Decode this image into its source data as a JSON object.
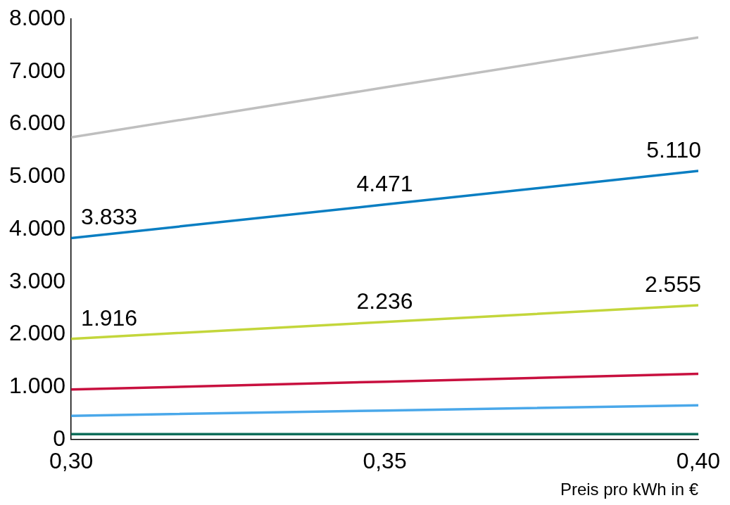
{
  "chart_data": {
    "type": "line",
    "xlabel": "Preis pro kWh in €",
    "x": [
      0.3,
      0.35,
      0.4
    ],
    "xlim": [
      0.3,
      0.4
    ],
    "xticks": [
      {
        "value": 0.3,
        "label": "0,30"
      },
      {
        "value": 0.35,
        "label": "0,35"
      },
      {
        "value": 0.4,
        "label": "0,40"
      }
    ],
    "ylim": [
      0,
      8000
    ],
    "yticks": [
      {
        "value": 0,
        "label": "0"
      },
      {
        "value": 1000,
        "label": "1.000"
      },
      {
        "value": 2000,
        "label": "2.000"
      },
      {
        "value": 3000,
        "label": "3.000"
      },
      {
        "value": 4000,
        "label": "4.000"
      },
      {
        "value": 5000,
        "label": "5.000"
      },
      {
        "value": 6000,
        "label": "6.000"
      },
      {
        "value": 7000,
        "label": "7.000"
      },
      {
        "value": 8000,
        "label": "8.000"
      }
    ],
    "series": [
      {
        "color": "#bfbfbf",
        "values": [
          5750,
          6700,
          7650
        ]
      },
      {
        "color": "#0a7ec2",
        "values": [
          3833,
          4471,
          5110
        ],
        "value_labels": [
          "3.833",
          "4.471",
          "5.110"
        ]
      },
      {
        "color": "#c3d63b",
        "values": [
          1916,
          2236,
          2555
        ],
        "value_labels": [
          "1.916",
          "2.236",
          "2.555"
        ]
      },
      {
        "color": "#c8103f",
        "values": [
          950,
          1100,
          1250
        ]
      },
      {
        "color": "#4aa8ea",
        "values": [
          450,
          550,
          650
        ]
      },
      {
        "color": "#0b6e5a",
        "values": [
          100,
          100,
          100
        ]
      }
    ],
    "grid": false,
    "legend": false,
    "marker": "none",
    "line_style": "solid"
  }
}
